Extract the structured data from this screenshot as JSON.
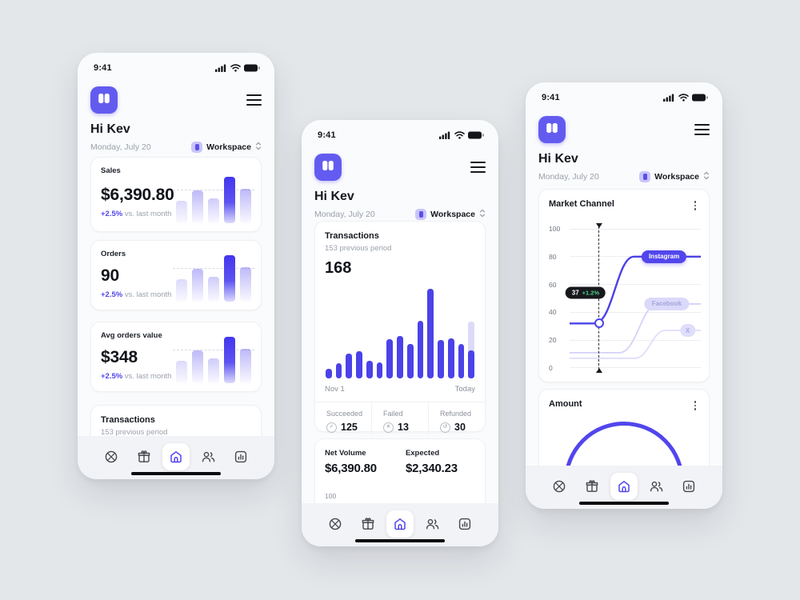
{
  "colors": {
    "primary": "#5246ec",
    "primary_dark": "#4b42e8",
    "lavender": "#dcdaf9",
    "logo": "#635bf0",
    "tooltip_bg": "#17181c",
    "delta_green": "#4ad08e",
    "page_bg": "#e4e7ea"
  },
  "shared": {
    "status_time": "9:41",
    "greeting": "Hi Kev",
    "date": "Monday, July 20",
    "workspace_label": "Workspace"
  },
  "tabbar": {
    "icons": [
      "support",
      "gift",
      "home",
      "team",
      "reports"
    ],
    "active": "home"
  },
  "phone1": {
    "kpi_cards": [
      {
        "title": "Sales",
        "value": "$6,390.80",
        "delta": "+2.5%",
        "delta_note": "vs. last month"
      },
      {
        "title": "Orders",
        "value": "90",
        "delta": "+2.5%",
        "delta_note": "vs. last month"
      },
      {
        "title": "Avg orders value",
        "value": "$348",
        "delta": "+2.5%",
        "delta_note": "vs. last month"
      }
    ],
    "kpi_chart": {
      "heights": [
        48,
        70,
        54,
        100,
        74
      ],
      "opacities": [
        0.2,
        0.38,
        0.28,
        1,
        0.38
      ],
      "solid_index": 3
    },
    "partial_card": {
      "title": "Transactions",
      "subtitle": "153 previous period"
    }
  },
  "phone2": {
    "transactions_card": {
      "title": "Transactions",
      "subtitle": "153 previous period",
      "value": "168",
      "bars": [
        11,
        17,
        28,
        30,
        20,
        18,
        44,
        47,
        38,
        64,
        100,
        43,
        45,
        38,
        31
      ],
      "ghost_bar": {
        "index": 14,
        "height": 63
      },
      "x_axis_start": "Nov 1",
      "x_axis_end": "Today",
      "stats": [
        {
          "label": "Succeeded",
          "icon": "check-circle",
          "glyph": "✓",
          "value": "125"
        },
        {
          "label": "Failed",
          "icon": "x-circle",
          "glyph": "✕",
          "value": "13"
        },
        {
          "label": "Refunded",
          "icon": "refund-circle",
          "glyph": "↺",
          "value": "30"
        }
      ]
    },
    "net_volume_card": {
      "label": "Net Volume",
      "value": "$6,390.80",
      "expected_label": "Expected",
      "expected_value": "$2,340.23",
      "axis_tick": "100"
    }
  },
  "phone3": {
    "market_channel_card": {
      "title": "Market Channel",
      "y_ticks": [
        "100",
        "80",
        "60",
        "40",
        "20",
        "0"
      ],
      "tooltip": {
        "value": "37",
        "delta": "+1.2%"
      },
      "labels": {
        "instagram": "Instagram",
        "facebook": "Facebook",
        "x": "X"
      },
      "series": [
        {
          "name": "Instagram",
          "start_value": 32,
          "end_value": 80
        },
        {
          "name": "Facebook",
          "start_value": 11,
          "end_value": 46
        },
        {
          "name": "X",
          "start_value": 7,
          "end_value": 27
        }
      ]
    },
    "amount_card": {
      "title": "Amount"
    }
  }
}
